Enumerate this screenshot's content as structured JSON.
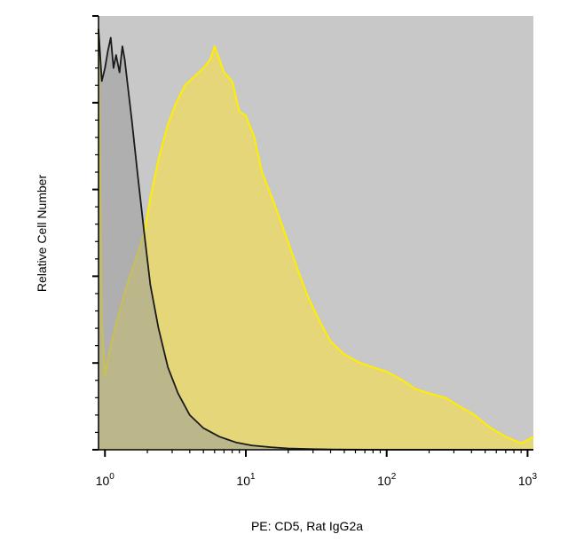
{
  "chart_data": {
    "type": "area",
    "title": "",
    "xlabel": "PE: CD5, Rat IgG2a",
    "ylabel": "Relative Cell Number",
    "x_scale": "log",
    "xlim": [
      0.9,
      1100
    ],
    "ylim": [
      0,
      100
    ],
    "grid": false,
    "legend": "none",
    "x_ticks": [
      {
        "base": "10",
        "exp": "0",
        "value": 1
      },
      {
        "base": "10",
        "exp": "1",
        "value": 10
      },
      {
        "base": "10",
        "exp": "2",
        "value": 100
      },
      {
        "base": "10",
        "exp": "3",
        "value": 1000
      }
    ],
    "background_color": "#c8c8c8",
    "series": [
      {
        "role": "isotype-control",
        "fill": "#9a9a9a",
        "stroke": "#1a1a1a",
        "x": [
          0.9,
          0.95,
          1.0,
          1.05,
          1.1,
          1.15,
          1.2,
          1.27,
          1.33,
          1.38,
          1.45,
          1.55,
          1.7,
          1.9,
          2.1,
          2.4,
          2.8,
          3.3,
          4.0,
          5.0,
          6.5,
          8.5,
          11,
          15,
          20,
          30,
          50,
          100,
          300,
          1100
        ],
        "y": [
          97,
          85,
          88,
          92,
          95,
          88,
          91,
          87,
          93,
          90,
          84,
          76,
          64,
          50,
          38,
          28,
          19,
          13,
          8,
          5,
          3,
          1.7,
          1,
          0.6,
          0.3,
          0.15,
          0.05,
          0,
          0,
          0
        ]
      },
      {
        "role": "cd5-stained",
        "fill": "#e8d870",
        "stroke": "#ffee00",
        "x": [
          0.9,
          0.95,
          1.0,
          1.05,
          1.1,
          1.2,
          1.35,
          1.5,
          1.7,
          1.9,
          2.1,
          2.4,
          2.8,
          3.2,
          3.7,
          4.3,
          5.0,
          5.6,
          6.0,
          6.5,
          7.0,
          8.0,
          9.0,
          10.0,
          11.5,
          13,
          15,
          18,
          22,
          27,
          33,
          40,
          50,
          65,
          80,
          100,
          130,
          160,
          200,
          260,
          330,
          420,
          550,
          700,
          900,
          1100
        ],
        "y": [
          97,
          30,
          17,
          21,
          24,
          29,
          35,
          40,
          45,
          50,
          58,
          67,
          75,
          80,
          84,
          86,
          88,
          90,
          93,
          90,
          87,
          85,
          78,
          77,
          72,
          64,
          59,
          52,
          44,
          36,
          30,
          25,
          22,
          20,
          19,
          18,
          16,
          14,
          13,
          12,
          10,
          8,
          5,
          3,
          1.5,
          3
        ]
      }
    ]
  }
}
